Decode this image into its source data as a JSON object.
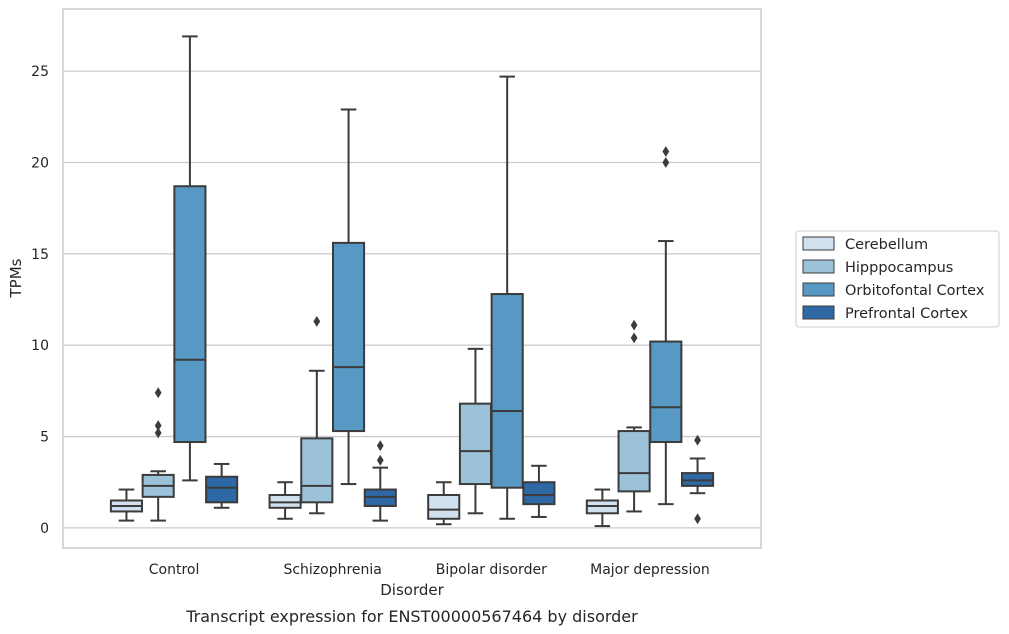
{
  "chart_data": {
    "type": "box",
    "title": "",
    "caption": "Transcript expression for ENST00000567464 by disorder",
    "xlabel": "Disorder",
    "ylabel": "TPMs",
    "ylim": [
      -1.1,
      28.4
    ],
    "yticks": [
      0,
      5,
      10,
      15,
      20,
      25
    ],
    "grid": true,
    "legend_position": "right",
    "categories": [
      "Control",
      "Schizophrenia",
      "Bipolar disorder",
      "Major depression"
    ],
    "series": [
      {
        "name": "Cerebellum",
        "color": "#d1e0ef",
        "boxes": [
          {
            "whisker_low": 0.4,
            "q1": 0.9,
            "median": 1.2,
            "q3": 1.5,
            "whisker_high": 2.1,
            "outliers": []
          },
          {
            "whisker_low": 0.5,
            "q1": 1.1,
            "median": 1.4,
            "q3": 1.8,
            "whisker_high": 2.5,
            "outliers": []
          },
          {
            "whisker_low": 0.2,
            "q1": 0.5,
            "median": 1.0,
            "q3": 1.8,
            "whisker_high": 2.5,
            "outliers": []
          },
          {
            "whisker_low": 0.1,
            "q1": 0.8,
            "median": 1.2,
            "q3": 1.5,
            "whisker_high": 2.1,
            "outliers": []
          }
        ]
      },
      {
        "name": "Hipppocampus",
        "color": "#9cc2da",
        "boxes": [
          {
            "whisker_low": 0.4,
            "q1": 1.7,
            "median": 2.3,
            "q3": 2.9,
            "whisker_high": 3.1,
            "outliers": [
              5.2,
              5.6,
              7.4
            ]
          },
          {
            "whisker_low": 0.8,
            "q1": 1.4,
            "median": 2.3,
            "q3": 4.9,
            "whisker_high": 8.6,
            "outliers": [
              11.3
            ]
          },
          {
            "whisker_low": 0.8,
            "q1": 2.4,
            "median": 4.2,
            "q3": 6.8,
            "whisker_high": 9.8,
            "outliers": []
          },
          {
            "whisker_low": 0.9,
            "q1": 2.0,
            "median": 3.0,
            "q3": 5.3,
            "whisker_high": 5.5,
            "outliers": [
              10.4,
              11.1
            ]
          }
        ]
      },
      {
        "name": "Orbitofontal Cortex",
        "color": "#5898c4",
        "boxes": [
          {
            "whisker_low": 2.6,
            "q1": 4.7,
            "median": 9.2,
            "q3": 18.7,
            "whisker_high": 26.9,
            "outliers": []
          },
          {
            "whisker_low": 2.4,
            "q1": 5.3,
            "median": 8.8,
            "q3": 15.6,
            "whisker_high": 22.9,
            "outliers": []
          },
          {
            "whisker_low": 0.5,
            "q1": 2.2,
            "median": 6.4,
            "q3": 12.8,
            "whisker_high": 24.7,
            "outliers": []
          },
          {
            "whisker_low": 1.3,
            "q1": 4.7,
            "median": 6.6,
            "q3": 10.2,
            "whisker_high": 15.7,
            "outliers": [
              20.0,
              20.6
            ]
          }
        ]
      },
      {
        "name": "Prefrontal Cortex",
        "color": "#2e68a5",
        "boxes": [
          {
            "whisker_low": 1.1,
            "q1": 1.4,
            "median": 2.2,
            "q3": 2.8,
            "whisker_high": 3.5,
            "outliers": []
          },
          {
            "whisker_low": 0.4,
            "q1": 1.2,
            "median": 1.7,
            "q3": 2.1,
            "whisker_high": 3.3,
            "outliers": [
              3.7,
              4.5
            ]
          },
          {
            "whisker_low": 0.6,
            "q1": 1.3,
            "median": 1.8,
            "q3": 2.5,
            "whisker_high": 3.4,
            "outliers": []
          },
          {
            "whisker_low": 1.9,
            "q1": 2.3,
            "median": 2.6,
            "q3": 3.0,
            "whisker_high": 3.8,
            "outliers": [
              0.5,
              4.8
            ]
          }
        ]
      }
    ]
  }
}
